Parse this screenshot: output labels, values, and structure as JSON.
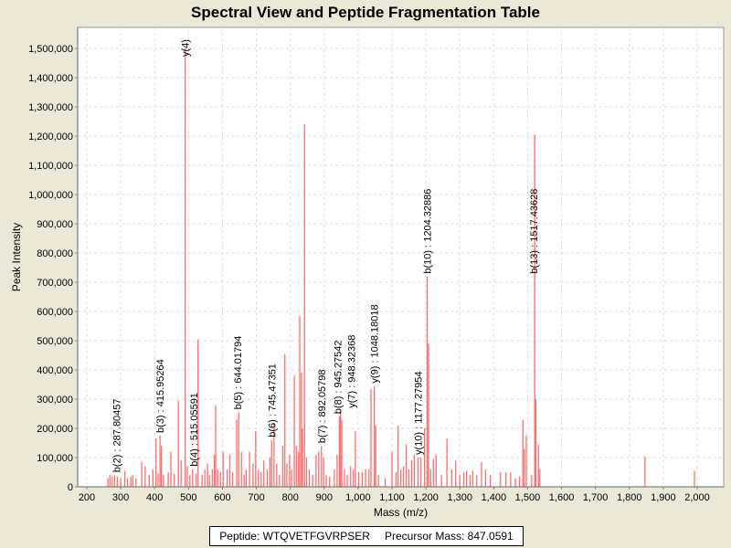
{
  "chart_data": {
    "type": "bar",
    "title": "Spectral View and Peptide Fragmentation Table",
    "xlabel": "Mass (m/z)",
    "ylabel": "Peak Intensity",
    "xlim": [
      170,
      2080
    ],
    "ylim": [
      0,
      1600000
    ],
    "xticks": [
      200,
      300,
      400,
      500,
      600,
      700,
      800,
      900,
      1000,
      1100,
      1200,
      1300,
      1400,
      1500,
      1600,
      1700,
      1800,
      1900,
      2000
    ],
    "xtick_labels": [
      "200",
      "300",
      "400",
      "500",
      "600",
      "700",
      "800",
      "900",
      "1,000",
      "1,100",
      "1,200",
      "1,300",
      "1,400",
      "1,500",
      "1,600",
      "1,700",
      "1,800",
      "1,900",
      "2,000"
    ],
    "yticks": [
      0,
      100000,
      200000,
      300000,
      400000,
      500000,
      600000,
      700000,
      800000,
      900000,
      1000000,
      1100000,
      1200000,
      1300000,
      1400000,
      1500000
    ],
    "ytick_labels": [
      "0",
      "100,000",
      "200,000",
      "300,000",
      "400,000",
      "500,000",
      "600,000",
      "700,000",
      "800,000",
      "900,000",
      "1,000,000",
      "1,100,000",
      "1,200,000",
      "1,300,000",
      "1,400,000",
      "1,500,000"
    ],
    "grid": true,
    "bar_color": "#ff5555",
    "peaks": [
      [
        262,
        30000
      ],
      [
        268,
        40000
      ],
      [
        275,
        35000
      ],
      [
        282,
        40000
      ],
      [
        290,
        35000
      ],
      [
        300,
        30000
      ],
      [
        312,
        55000
      ],
      [
        320,
        30000
      ],
      [
        330,
        35000
      ],
      [
        336,
        40000
      ],
      [
        345,
        30000
      ],
      [
        362,
        85000
      ],
      [
        372,
        70000
      ],
      [
        384,
        40000
      ],
      [
        395,
        60000
      ],
      [
        404,
        165000
      ],
      [
        410,
        45000
      ],
      [
        416,
        175000
      ],
      [
        420,
        140000
      ],
      [
        426,
        40000
      ],
      [
        440,
        50000
      ],
      [
        448,
        120000
      ],
      [
        458,
        45000
      ],
      [
        470,
        295000
      ],
      [
        478,
        90000
      ],
      [
        490,
        1500000
      ],
      [
        496,
        70000
      ],
      [
        504,
        40000
      ],
      [
        512,
        60000
      ],
      [
        522,
        45000
      ],
      [
        528,
        505000
      ],
      [
        540,
        40000
      ],
      [
        548,
        60000
      ],
      [
        556,
        80000
      ],
      [
        562,
        40000
      ],
      [
        570,
        60000
      ],
      [
        576,
        110000
      ],
      [
        580,
        280000
      ],
      [
        586,
        60000
      ],
      [
        594,
        50000
      ],
      [
        602,
        120000
      ],
      [
        614,
        60000
      ],
      [
        622,
        110000
      ],
      [
        630,
        50000
      ],
      [
        642,
        230000
      ],
      [
        648,
        255000
      ],
      [
        656,
        120000
      ],
      [
        664,
        40000
      ],
      [
        670,
        60000
      ],
      [
        680,
        120000
      ],
      [
        690,
        80000
      ],
      [
        698,
        190000
      ],
      [
        706,
        60000
      ],
      [
        714,
        50000
      ],
      [
        722,
        90000
      ],
      [
        732,
        60000
      ],
      [
        740,
        100000
      ],
      [
        745,
        160000
      ],
      [
        752,
        220000
      ],
      [
        760,
        80000
      ],
      [
        768,
        40000
      ],
      [
        778,
        140000
      ],
      [
        784,
        455000
      ],
      [
        790,
        80000
      ],
      [
        798,
        110000
      ],
      [
        804,
        60000
      ],
      [
        812,
        380000
      ],
      [
        818,
        140000
      ],
      [
        824,
        120000
      ],
      [
        828,
        585000
      ],
      [
        833,
        390000
      ],
      [
        836,
        200000
      ],
      [
        842,
        1240000
      ],
      [
        848,
        100000
      ],
      [
        856,
        60000
      ],
      [
        866,
        40000
      ],
      [
        876,
        110000
      ],
      [
        884,
        120000
      ],
      [
        892,
        140000
      ],
      [
        898,
        100000
      ],
      [
        906,
        40000
      ],
      [
        916,
        35000
      ],
      [
        930,
        60000
      ],
      [
        938,
        110000
      ],
      [
        945,
        240000
      ],
      [
        948,
        260000
      ],
      [
        952,
        230000
      ],
      [
        960,
        60000
      ],
      [
        968,
        40000
      ],
      [
        978,
        70000
      ],
      [
        986,
        60000
      ],
      [
        992,
        190000
      ],
      [
        1002,
        50000
      ],
      [
        1012,
        50000
      ],
      [
        1022,
        60000
      ],
      [
        1032,
        60000
      ],
      [
        1038,
        335000
      ],
      [
        1048,
        345000
      ],
      [
        1052,
        210000
      ],
      [
        1060,
        40000
      ],
      [
        1080,
        30000
      ],
      [
        1100,
        120000
      ],
      [
        1112,
        50000
      ],
      [
        1118,
        210000
      ],
      [
        1126,
        60000
      ],
      [
        1134,
        70000
      ],
      [
        1142,
        145000
      ],
      [
        1150,
        60000
      ],
      [
        1158,
        90000
      ],
      [
        1166,
        110000
      ],
      [
        1177,
        100000
      ],
      [
        1185,
        100000
      ],
      [
        1196,
        200000
      ],
      [
        1204,
        720000
      ],
      [
        1208,
        490000
      ],
      [
        1214,
        60000
      ],
      [
        1222,
        95000
      ],
      [
        1230,
        110000
      ],
      [
        1246,
        40000
      ],
      [
        1262,
        165000
      ],
      [
        1276,
        60000
      ],
      [
        1288,
        90000
      ],
      [
        1300,
        40000
      ],
      [
        1312,
        50000
      ],
      [
        1320,
        55000
      ],
      [
        1330,
        40000
      ],
      [
        1338,
        55000
      ],
      [
        1350,
        40000
      ],
      [
        1364,
        85000
      ],
      [
        1376,
        60000
      ],
      [
        1390,
        40000
      ],
      [
        1420,
        50000
      ],
      [
        1436,
        50000
      ],
      [
        1450,
        50000
      ],
      [
        1464,
        30000
      ],
      [
        1476,
        35000
      ],
      [
        1486,
        230000
      ],
      [
        1490,
        130000
      ],
      [
        1496,
        175000
      ],
      [
        1512,
        40000
      ],
      [
        1521,
        1205000
      ],
      [
        1524,
        300000
      ],
      [
        1532,
        145000
      ],
      [
        1536,
        60000
      ],
      [
        1846,
        105000
      ],
      [
        1992,
        55000
      ]
    ],
    "annotations": [
      {
        "label": "b(2) : 287.80457",
        "mz": 287.8,
        "y": 40000
      },
      {
        "label": "b(3) : 415.95264",
        "mz": 416,
        "y": 175000
      },
      {
        "label": "y(4)",
        "mz": 490,
        "y": 1500000
      },
      {
        "label": "b(4) : 515.05591",
        "mz": 515,
        "y": 60000
      },
      {
        "label": "b(5) : 644.01794",
        "mz": 644,
        "y": 255000
      },
      {
        "label": "b(6) : 745.47351",
        "mz": 745.5,
        "y": 160000
      },
      {
        "label": "b(7) : 892.05798",
        "mz": 892,
        "y": 140000
      },
      {
        "label": "b(8) : 945.27542",
        "mz": 945,
        "y": 240000
      },
      {
        "label": "y(7) : 948.32368",
        "mz": 948,
        "y": 260000
      },
      {
        "label": "y(9) : 1048.18018",
        "mz": 1048,
        "y": 345000
      },
      {
        "label": "y(10) : 1177.27954",
        "mz": 1177,
        "y": 100000
      },
      {
        "label": "b(10) : 1204.32886",
        "mz": 1204,
        "y": 720000
      },
      {
        "label": "b(13) : 1517.43628",
        "mz": 1517.4,
        "y": 720000
      }
    ]
  },
  "footer": {
    "peptide": "Peptide: WTQVETFGVRPSER",
    "precursor": "Precursor Mass: 847.0591"
  }
}
